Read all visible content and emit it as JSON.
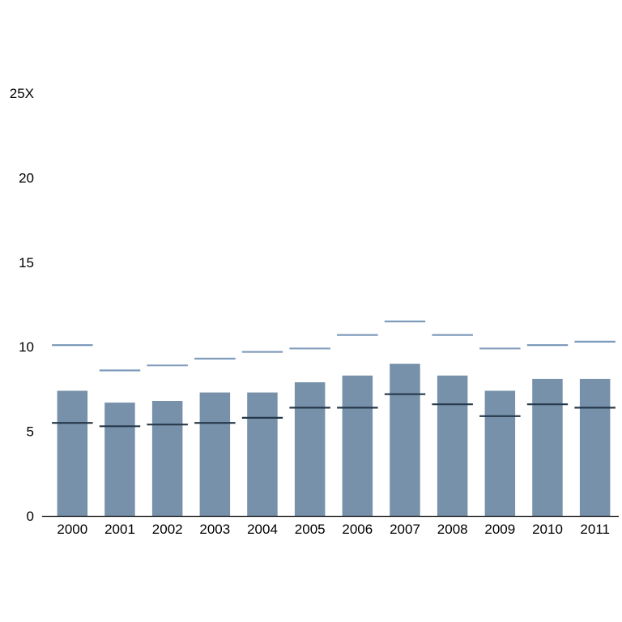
{
  "chart_data": {
    "type": "bar",
    "title": "",
    "xlabel": "",
    "ylabel": "",
    "categories": [
      "2000",
      "2001",
      "2002",
      "2003",
      "2004",
      "2005",
      "2006",
      "2007",
      "2008",
      "2009",
      "2010",
      "2011"
    ],
    "ylim": [
      0,
      25
    ],
    "y_ticks": [
      "0",
      "5",
      "10",
      "15",
      "20",
      "25X"
    ],
    "grid": false,
    "legend": "none",
    "series": [
      {
        "type": "bar",
        "values": [
          7.4,
          6.7,
          6.8,
          7.3,
          7.3,
          7.9,
          8.3,
          9.0,
          8.3,
          7.4,
          8.1,
          8.1
        ],
        "color": "#7791ab"
      },
      {
        "type": "marker-line",
        "values": [
          10.1,
          8.6,
          8.9,
          9.3,
          9.7,
          9.9,
          10.7,
          11.5,
          10.7,
          9.9,
          10.1,
          10.3
        ],
        "color": "#7f9bbb"
      },
      {
        "type": "marker-line",
        "values": [
          5.5,
          5.3,
          5.4,
          5.5,
          5.8,
          6.4,
          6.4,
          7.2,
          6.6,
          5.9,
          6.6,
          6.4
        ],
        "color": "#26394a"
      }
    ]
  }
}
